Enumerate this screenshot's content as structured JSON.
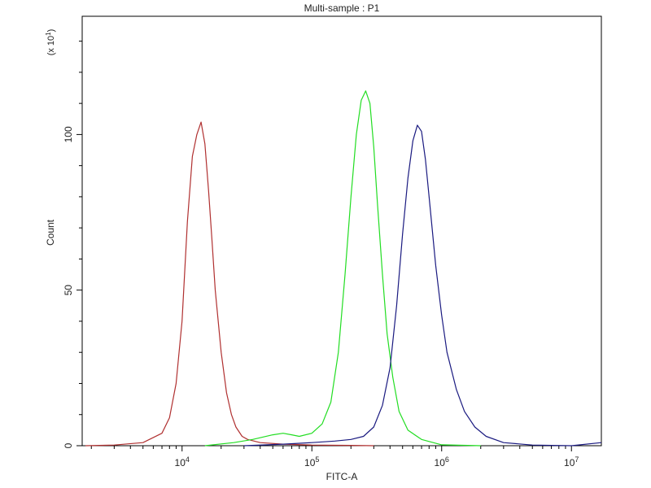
{
  "chart_data": {
    "type": "line",
    "title": "Multi-sample : P1",
    "xlabel": "FITC-A",
    "ylabel": "Count",
    "y_multiplier_label": "(x 10",
    "y_multiplier_exp": "1",
    "y_multiplier_close": ")",
    "x_scale": "log",
    "xlim": [
      1700,
      17000000
    ],
    "ylim": [
      0,
      138
    ],
    "x_ticks": [
      {
        "value": 10000,
        "base": "10",
        "exp": "4"
      },
      {
        "value": 100000,
        "base": "10",
        "exp": "5"
      },
      {
        "value": 1000000,
        "base": "10",
        "exp": "6"
      },
      {
        "value": 10000000,
        "base": "10",
        "exp": "7"
      }
    ],
    "y_ticks": [
      {
        "value": 0,
        "label": "0"
      },
      {
        "value": 50,
        "label": "50"
      },
      {
        "value": 100,
        "label": "100"
      }
    ],
    "grid": false,
    "legend": "none",
    "series": [
      {
        "color": "#b03030",
        "x": [
          1800,
          3000,
          5000,
          7000,
          8000,
          9000,
          10000,
          11000,
          12000,
          13000,
          14000,
          15000,
          16000,
          17000,
          18000,
          20000,
          22000,
          24000,
          26000,
          29000,
          32000,
          40000,
          60000,
          100000,
          200000,
          300000
        ],
        "y": [
          0,
          0.2,
          1,
          4,
          9,
          20,
          40,
          72,
          93,
          100,
          104,
          97,
          82,
          66,
          50,
          30,
          17,
          10,
          6,
          3,
          2,
          1,
          0.5,
          0.2,
          0.1,
          0
        ]
      },
      {
        "color": "#22dd22",
        "x": [
          15000,
          25000,
          35000,
          50000,
          60000,
          70000,
          80000,
          100000,
          120000,
          140000,
          160000,
          180000,
          200000,
          220000,
          240000,
          260000,
          280000,
          300000,
          320000,
          350000,
          380000,
          420000,
          470000,
          550000,
          700000,
          1000000,
          2000000
        ],
        "y": [
          0,
          1,
          2,
          3.5,
          4,
          3.5,
          3,
          4,
          7,
          14,
          30,
          55,
          80,
          100,
          111,
          114,
          110,
          96,
          78,
          55,
          36,
          22,
          11,
          5,
          2,
          0.3,
          0
        ],
        "label_note": ""
      },
      {
        "color": "#1a1a80",
        "x": [
          30000,
          60000,
          100000,
          150000,
          200000,
          250000,
          300000,
          350000,
          400000,
          450000,
          500000,
          550000,
          600000,
          650000,
          700000,
          750000,
          800000,
          900000,
          1000000,
          1100000,
          1300000,
          1500000,
          1800000,
          2200000,
          3000000,
          5000000,
          10000000,
          17000000
        ],
        "y": [
          0,
          0.5,
          1,
          1.5,
          2,
          3,
          6,
          13,
          25,
          45,
          68,
          86,
          98,
          103,
          101,
          92,
          80,
          58,
          42,
          30,
          18,
          11,
          6,
          3,
          1,
          0.2,
          0,
          1
        ]
      }
    ]
  }
}
